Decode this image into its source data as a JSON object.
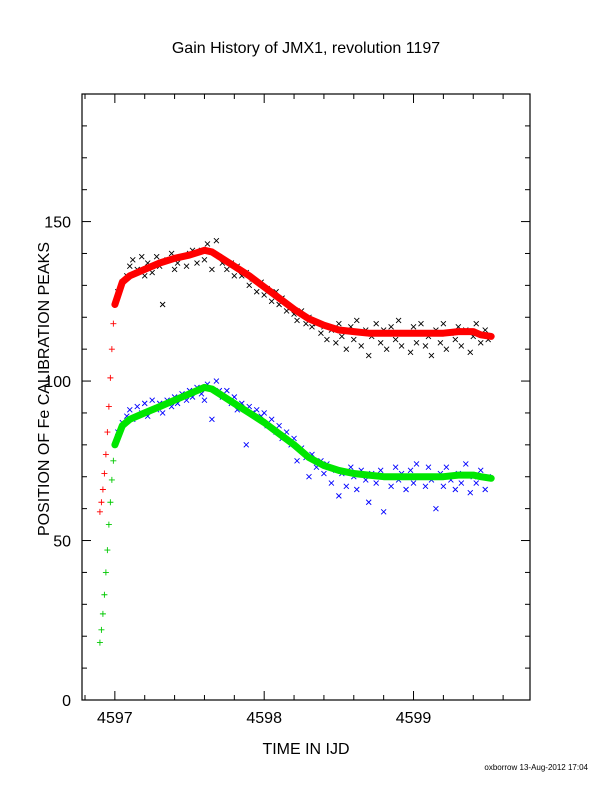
{
  "chart_data": {
    "type": "scatter",
    "title": "Gain History of JMX1, revolution 1197",
    "xlabel": "TIME IN IJD",
    "ylabel": "POSITION OF Fe CALIBRATION PEAKS",
    "xlim": [
      4596.78,
      4599.78
    ],
    "ylim": [
      0,
      190
    ],
    "x_ticks": [
      4597,
      4598,
      4599
    ],
    "y_ticks": [
      0,
      50,
      100,
      150
    ],
    "grid": false,
    "legend": "none",
    "series": [
      {
        "color": "#000000",
        "marker": "x",
        "points": [
          [
            4597.02,
            128
          ],
          [
            4597.05,
            131
          ],
          [
            4597.08,
            133
          ],
          [
            4597.1,
            136
          ],
          [
            4597.12,
            138
          ],
          [
            4597.15,
            135
          ],
          [
            4597.18,
            139
          ],
          [
            4597.2,
            133
          ],
          [
            4597.22,
            137
          ],
          [
            4597.25,
            134
          ],
          [
            4597.28,
            139
          ],
          [
            4597.3,
            136
          ],
          [
            4597.32,
            124
          ],
          [
            4597.35,
            138
          ],
          [
            4597.38,
            140
          ],
          [
            4597.4,
            135
          ],
          [
            4597.42,
            137
          ],
          [
            4597.45,
            139
          ],
          [
            4597.48,
            136
          ],
          [
            4597.5,
            140
          ],
          [
            4597.52,
            141
          ],
          [
            4597.55,
            137
          ],
          [
            4597.58,
            141
          ],
          [
            4597.6,
            138
          ],
          [
            4597.62,
            143
          ],
          [
            4597.65,
            135
          ],
          [
            4597.68,
            144
          ],
          [
            4597.7,
            139
          ],
          [
            4597.72,
            137
          ],
          [
            4597.75,
            135
          ],
          [
            4597.78,
            137
          ],
          [
            4597.8,
            133
          ],
          [
            4597.82,
            136
          ],
          [
            4597.85,
            133
          ],
          [
            4597.88,
            134
          ],
          [
            4597.9,
            130
          ],
          [
            4597.92,
            132
          ],
          [
            4597.95,
            128
          ],
          [
            4597.98,
            131
          ],
          [
            4598.0,
            127
          ],
          [
            4598.02,
            129
          ],
          [
            4598.05,
            125
          ],
          [
            4598.08,
            128
          ],
          [
            4598.1,
            124
          ],
          [
            4598.12,
            126
          ],
          [
            4598.15,
            122
          ],
          [
            4598.18,
            123
          ],
          [
            4598.2,
            121
          ],
          [
            4598.22,
            119
          ],
          [
            4598.25,
            122
          ],
          [
            4598.28,
            118
          ],
          [
            4598.3,
            120
          ],
          [
            4598.32,
            117
          ],
          [
            4598.35,
            118
          ],
          [
            4598.38,
            115
          ],
          [
            4598.4,
            117
          ],
          [
            4598.42,
            113
          ],
          [
            4598.45,
            116
          ],
          [
            4598.48,
            112
          ],
          [
            4598.5,
            118
          ],
          [
            4598.52,
            114
          ],
          [
            4598.55,
            110
          ],
          [
            4598.58,
            117
          ],
          [
            4598.6,
            113
          ],
          [
            4598.62,
            119
          ],
          [
            4598.65,
            111
          ],
          [
            4598.68,
            116
          ],
          [
            4598.7,
            108
          ],
          [
            4598.72,
            114
          ],
          [
            4598.75,
            118
          ],
          [
            4598.78,
            112
          ],
          [
            4598.8,
            116
          ],
          [
            4598.82,
            110
          ],
          [
            4598.85,
            117
          ],
          [
            4598.88,
            113
          ],
          [
            4598.9,
            119
          ],
          [
            4598.92,
            111
          ],
          [
            4598.95,
            115
          ],
          [
            4598.98,
            109
          ],
          [
            4599.0,
            117
          ],
          [
            4599.02,
            112
          ],
          [
            4599.05,
            118
          ],
          [
            4599.08,
            111
          ],
          [
            4599.1,
            114
          ],
          [
            4599.12,
            108
          ],
          [
            4599.15,
            116
          ],
          [
            4599.18,
            112
          ],
          [
            4599.2,
            118
          ],
          [
            4599.22,
            110
          ],
          [
            4599.25,
            115
          ],
          [
            4599.28,
            113
          ],
          [
            4599.3,
            117
          ],
          [
            4599.32,
            111
          ],
          [
            4599.35,
            116
          ],
          [
            4599.38,
            109
          ],
          [
            4599.4,
            114
          ],
          [
            4599.42,
            118
          ],
          [
            4599.45,
            112
          ],
          [
            4599.48,
            116
          ],
          [
            4599.5,
            113
          ]
        ]
      },
      {
        "color": "#0000ff",
        "marker": "x",
        "points": [
          [
            4597.02,
            84
          ],
          [
            4597.05,
            87
          ],
          [
            4597.08,
            89
          ],
          [
            4597.1,
            91
          ],
          [
            4597.12,
            88
          ],
          [
            4597.15,
            92
          ],
          [
            4597.18,
            90
          ],
          [
            4597.2,
            93
          ],
          [
            4597.22,
            89
          ],
          [
            4597.25,
            94
          ],
          [
            4597.28,
            91
          ],
          [
            4597.3,
            93
          ],
          [
            4597.32,
            90
          ],
          [
            4597.35,
            94
          ],
          [
            4597.38,
            92
          ],
          [
            4597.4,
            95
          ],
          [
            4597.42,
            93
          ],
          [
            4597.45,
            96
          ],
          [
            4597.48,
            94
          ],
          [
            4597.5,
            97
          ],
          [
            4597.52,
            95
          ],
          [
            4597.55,
            98
          ],
          [
            4597.58,
            96
          ],
          [
            4597.6,
            94
          ],
          [
            4597.62,
            99
          ],
          [
            4597.65,
            88
          ],
          [
            4597.68,
            100
          ],
          [
            4597.7,
            97
          ],
          [
            4597.72,
            95
          ],
          [
            4597.75,
            97
          ],
          [
            4597.78,
            93
          ],
          [
            4597.8,
            95
          ],
          [
            4597.82,
            91
          ],
          [
            4597.85,
            93
          ],
          [
            4597.88,
            80
          ],
          [
            4597.9,
            92
          ],
          [
            4597.92,
            90
          ],
          [
            4597.95,
            91
          ],
          [
            4597.98,
            89
          ],
          [
            4598.0,
            90
          ],
          [
            4598.02,
            86
          ],
          [
            4598.05,
            88
          ],
          [
            4598.08,
            84
          ],
          [
            4598.1,
            86
          ],
          [
            4598.12,
            82
          ],
          [
            4598.15,
            84
          ],
          [
            4598.18,
            80
          ],
          [
            4598.2,
            82
          ],
          [
            4598.22,
            75
          ],
          [
            4598.25,
            79
          ],
          [
            4598.28,
            76
          ],
          [
            4598.3,
            70
          ],
          [
            4598.32,
            77
          ],
          [
            4598.35,
            73
          ],
          [
            4598.38,
            75
          ],
          [
            4598.4,
            71
          ],
          [
            4598.42,
            74
          ],
          [
            4598.45,
            68
          ],
          [
            4598.48,
            72
          ],
          [
            4598.5,
            64
          ],
          [
            4598.52,
            71
          ],
          [
            4598.55,
            67
          ],
          [
            4598.58,
            73
          ],
          [
            4598.6,
            70
          ],
          [
            4598.62,
            66
          ],
          [
            4598.65,
            72
          ],
          [
            4598.68,
            69
          ],
          [
            4598.7,
            62
          ],
          [
            4598.72,
            71
          ],
          [
            4598.75,
            68
          ],
          [
            4598.78,
            72
          ],
          [
            4598.8,
            59
          ],
          [
            4598.82,
            70
          ],
          [
            4598.85,
            67
          ],
          [
            4598.88,
            73
          ],
          [
            4598.9,
            69
          ],
          [
            4598.92,
            71
          ],
          [
            4598.95,
            66
          ],
          [
            4598.98,
            72
          ],
          [
            4599.0,
            68
          ],
          [
            4599.02,
            74
          ],
          [
            4599.05,
            70
          ],
          [
            4599.08,
            67
          ],
          [
            4599.1,
            73
          ],
          [
            4599.12,
            69
          ],
          [
            4599.15,
            60
          ],
          [
            4599.18,
            71
          ],
          [
            4599.2,
            67
          ],
          [
            4599.22,
            73
          ],
          [
            4599.25,
            69
          ],
          [
            4599.28,
            66
          ],
          [
            4599.3,
            71
          ],
          [
            4599.32,
            68
          ],
          [
            4599.35,
            74
          ],
          [
            4599.38,
            65
          ],
          [
            4599.4,
            70
          ],
          [
            4599.42,
            68
          ],
          [
            4599.45,
            72
          ],
          [
            4599.48,
            66
          ],
          [
            4599.5,
            70
          ]
        ]
      },
      {
        "color": "#ff0000",
        "marker": "+",
        "points": [
          [
            4596.9,
            59
          ],
          [
            4596.91,
            62
          ],
          [
            4596.92,
            66
          ],
          [
            4596.93,
            71
          ],
          [
            4596.94,
            77
          ],
          [
            4596.95,
            84
          ],
          [
            4596.96,
            92
          ],
          [
            4596.97,
            101
          ],
          [
            4596.98,
            110
          ],
          [
            4596.99,
            118
          ],
          [
            4597.0,
            124
          ]
        ]
      },
      {
        "color": "#00c800",
        "marker": "+",
        "points": [
          [
            4596.9,
            18
          ],
          [
            4596.91,
            22
          ],
          [
            4596.92,
            27
          ],
          [
            4596.93,
            33
          ],
          [
            4596.94,
            40
          ],
          [
            4596.95,
            47
          ],
          [
            4596.96,
            55
          ],
          [
            4596.97,
            62
          ],
          [
            4596.98,
            69
          ],
          [
            4596.99,
            75
          ],
          [
            4597.0,
            80
          ]
        ]
      },
      {
        "color": "#ff0000",
        "marker": "line",
        "points": [
          [
            4597.0,
            124
          ],
          [
            4597.05,
            131
          ],
          [
            4597.1,
            133
          ],
          [
            4597.2,
            135
          ],
          [
            4597.3,
            137
          ],
          [
            4597.4,
            138.5
          ],
          [
            4597.5,
            139.5
          ],
          [
            4597.6,
            141
          ],
          [
            4597.65,
            140.5
          ],
          [
            4597.7,
            139
          ],
          [
            4597.8,
            136
          ],
          [
            4597.9,
            133
          ],
          [
            4598.0,
            129.5
          ],
          [
            4598.1,
            126
          ],
          [
            4598.2,
            122.5
          ],
          [
            4598.3,
            119.5
          ],
          [
            4598.4,
            117.5
          ],
          [
            4598.5,
            116
          ],
          [
            4598.6,
            115.5
          ],
          [
            4598.7,
            115
          ],
          [
            4598.8,
            115
          ],
          [
            4598.9,
            115
          ],
          [
            4599.0,
            115
          ],
          [
            4599.1,
            115
          ],
          [
            4599.2,
            115
          ],
          [
            4599.3,
            115.5
          ],
          [
            4599.4,
            115.5
          ],
          [
            4599.45,
            114.5
          ],
          [
            4599.52,
            114
          ]
        ]
      },
      {
        "color": "#00e600",
        "marker": "line",
        "points": [
          [
            4597.0,
            80
          ],
          [
            4597.05,
            86
          ],
          [
            4597.1,
            88
          ],
          [
            4597.2,
            90
          ],
          [
            4597.3,
            92
          ],
          [
            4597.4,
            94
          ],
          [
            4597.5,
            96
          ],
          [
            4597.6,
            98
          ],
          [
            4597.65,
            97.5
          ],
          [
            4597.7,
            96
          ],
          [
            4597.8,
            93
          ],
          [
            4597.9,
            90
          ],
          [
            4598.0,
            87
          ],
          [
            4598.1,
            83.5
          ],
          [
            4598.2,
            80
          ],
          [
            4598.3,
            76
          ],
          [
            4598.4,
            73.5
          ],
          [
            4598.5,
            72
          ],
          [
            4598.6,
            71
          ],
          [
            4598.7,
            70.5
          ],
          [
            4598.8,
            70
          ],
          [
            4598.9,
            70
          ],
          [
            4599.0,
            70
          ],
          [
            4599.1,
            70
          ],
          [
            4599.2,
            70
          ],
          [
            4599.3,
            70.5
          ],
          [
            4599.4,
            70.5
          ],
          [
            4599.45,
            70
          ],
          [
            4599.52,
            69.5
          ]
        ]
      }
    ]
  },
  "footer": "oxborrow 13-Aug-2012 17:04"
}
